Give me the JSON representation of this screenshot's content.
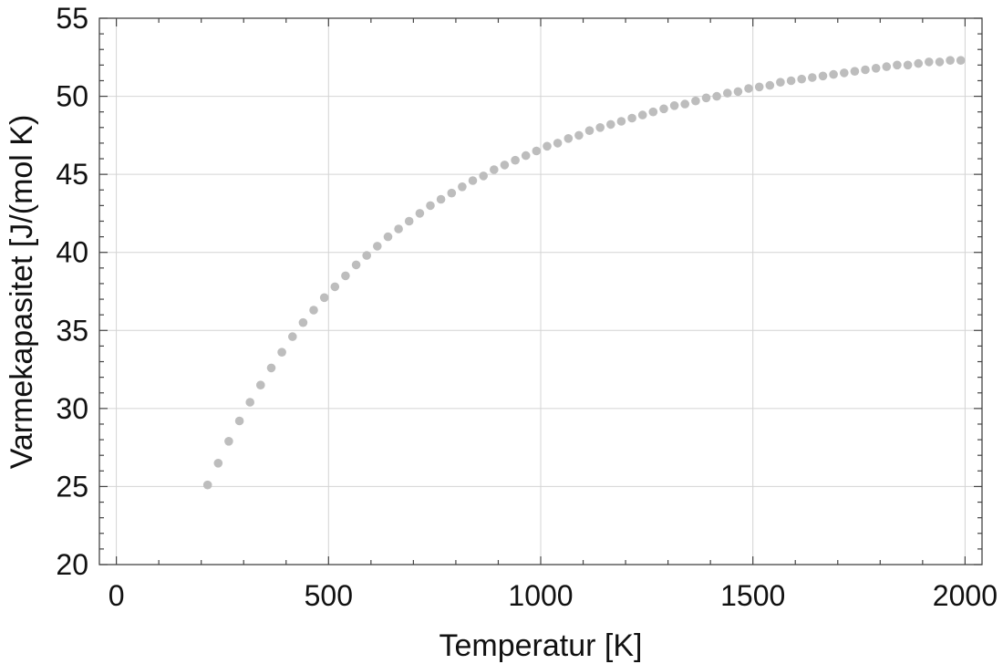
{
  "chart_data": {
    "type": "scatter",
    "xlabel": "Temperatur [K]",
    "ylabel": "Varmekapasitet [J/(mol K)",
    "xlim": [
      -40,
      2040
    ],
    "ylim": [
      20,
      55
    ],
    "x_ticks": [
      0,
      500,
      1000,
      1500,
      2000
    ],
    "y_ticks": [
      20,
      25,
      30,
      35,
      40,
      45,
      50,
      55
    ],
    "x_tick_labels": [
      "0",
      "500",
      "1000",
      "1500",
      "2000"
    ],
    "y_tick_labels": [
      "20",
      "25",
      "30",
      "35",
      "40",
      "45",
      "50",
      "55"
    ],
    "grid": true,
    "marker_color": "#bdbdbd",
    "series": [
      {
        "x": [
          215,
          240,
          265,
          290,
          315,
          340,
          365,
          390,
          415,
          440,
          465,
          490,
          515,
          540,
          565,
          590,
          615,
          640,
          665,
          690,
          715,
          740,
          765,
          790,
          815,
          840,
          865,
          890,
          915,
          940,
          965,
          990,
          1015,
          1040,
          1065,
          1090,
          1115,
          1140,
          1165,
          1190,
          1215,
          1240,
          1265,
          1290,
          1315,
          1340,
          1365,
          1390,
          1415,
          1440,
          1465,
          1490,
          1515,
          1540,
          1565,
          1590,
          1615,
          1640,
          1665,
          1690,
          1715,
          1740,
          1765,
          1790,
          1815,
          1840,
          1865,
          1890,
          1915,
          1940,
          1965,
          1990
        ],
        "y": [
          25.1,
          26.5,
          27.9,
          29.2,
          30.4,
          31.5,
          32.6,
          33.6,
          34.6,
          35.5,
          36.3,
          37.1,
          37.8,
          38.5,
          39.2,
          39.8,
          40.4,
          41.0,
          41.5,
          42.0,
          42.5,
          43.0,
          43.4,
          43.8,
          44.2,
          44.6,
          44.9,
          45.3,
          45.6,
          45.9,
          46.2,
          46.5,
          46.8,
          47.0,
          47.3,
          47.5,
          47.8,
          48.0,
          48.2,
          48.4,
          48.6,
          48.8,
          49.0,
          49.2,
          49.4,
          49.5,
          49.7,
          49.9,
          50.0,
          50.2,
          50.3,
          50.5,
          50.6,
          50.7,
          50.9,
          51.0,
          51.1,
          51.2,
          51.3,
          51.4,
          51.5,
          51.6,
          51.7,
          51.8,
          51.9,
          52.0,
          52.0,
          52.1,
          52.2,
          52.2,
          52.3,
          52.3
        ]
      }
    ]
  }
}
